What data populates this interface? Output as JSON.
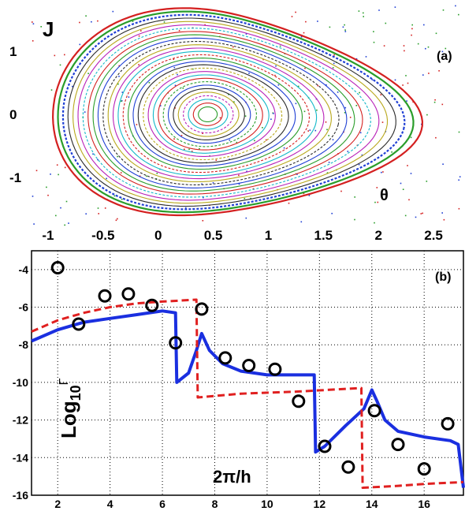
{
  "chart_data": [
    {
      "panel": "(a)",
      "type": "scatter",
      "description_kind": "phase-space orbits",
      "xlabel": "θ",
      "ylabel": "J",
      "xlim": [
        -1.15,
        2.75
      ],
      "ylim": [
        -1.75,
        1.75
      ],
      "xticks": [
        "-1",
        "-0.5",
        "0",
        "0.5",
        "1",
        "1.5",
        "2",
        "2.5"
      ],
      "yticks": [
        "1",
        "0",
        "-1"
      ],
      "island_center": [
        0.45,
        0.0
      ],
      "separatrix_outer_right": 2.5,
      "orbit_colors": [
        "#1f3fd4",
        "#2a9d2a",
        "#d42020",
        "#14b8c8",
        "#b820b8",
        "#b8a81c",
        "#2a2a2a"
      ],
      "grid": false
    },
    {
      "panel": "(b)",
      "type": "line",
      "xlabel": "2π/h",
      "ylabel_main": "Log",
      "ylabel_sub": "10",
      "ylabel_sup": "Γ",
      "xlim": [
        1,
        17.5
      ],
      "ylim": [
        -16,
        -3
      ],
      "xticks": [
        "2",
        "4",
        "6",
        "8",
        "10",
        "12",
        "14",
        "16"
      ],
      "yticks": [
        "-4",
        "-6",
        "-8",
        "-10",
        "-12",
        "-14",
        "-16"
      ],
      "grid": true,
      "series": [
        {
          "style": "solid",
          "color": "#1a2fe0",
          "x": [
            1.0,
            2.0,
            3.0,
            4.0,
            5.0,
            6.0,
            6.5,
            6.55,
            7.0,
            7.3,
            7.5,
            7.8,
            8.3,
            9.0,
            10.0,
            11.0,
            11.8,
            11.85,
            12.2,
            13.0,
            13.7,
            14.0,
            14.2,
            14.5,
            15.0,
            16.0,
            17.0,
            17.3,
            17.5
          ],
          "y": [
            -7.8,
            -7.2,
            -6.8,
            -6.6,
            -6.4,
            -6.2,
            -6.3,
            -10.0,
            -9.5,
            -8.3,
            -7.4,
            -8.3,
            -9.0,
            -9.4,
            -9.6,
            -9.6,
            -9.6,
            -13.7,
            -13.4,
            -12.3,
            -11.4,
            -10.4,
            -11.0,
            -12.0,
            -12.6,
            -12.9,
            -13.1,
            -13.3,
            -15.6
          ]
        },
        {
          "style": "dashed",
          "color": "#e02020",
          "x": [
            1.0,
            2.0,
            3.0,
            4.0,
            5.0,
            6.0,
            7.3,
            7.35,
            9.0,
            11.0,
            13.6,
            13.65,
            15.0,
            16.0,
            17.5
          ],
          "y": [
            -7.3,
            -6.7,
            -6.3,
            -6.0,
            -5.8,
            -5.7,
            -5.6,
            -10.8,
            -10.6,
            -10.5,
            -10.3,
            -15.6,
            -15.5,
            -15.4,
            -15.3
          ]
        },
        {
          "style": "circles",
          "color": "#000000",
          "x": [
            2.0,
            2.8,
            3.8,
            4.7,
            5.6,
            6.5,
            7.5,
            8.4,
            9.3,
            10.3,
            11.2,
            12.2,
            13.1,
            14.1,
            15.0,
            16.0,
            16.9
          ],
          "y": [
            -3.9,
            -6.9,
            -5.4,
            -5.3,
            -5.9,
            -7.9,
            -6.1,
            -8.7,
            -9.1,
            -9.3,
            -11.0,
            -13.4,
            -14.5,
            -11.5,
            -13.3,
            -14.6,
            -12.2
          ]
        }
      ]
    }
  ]
}
